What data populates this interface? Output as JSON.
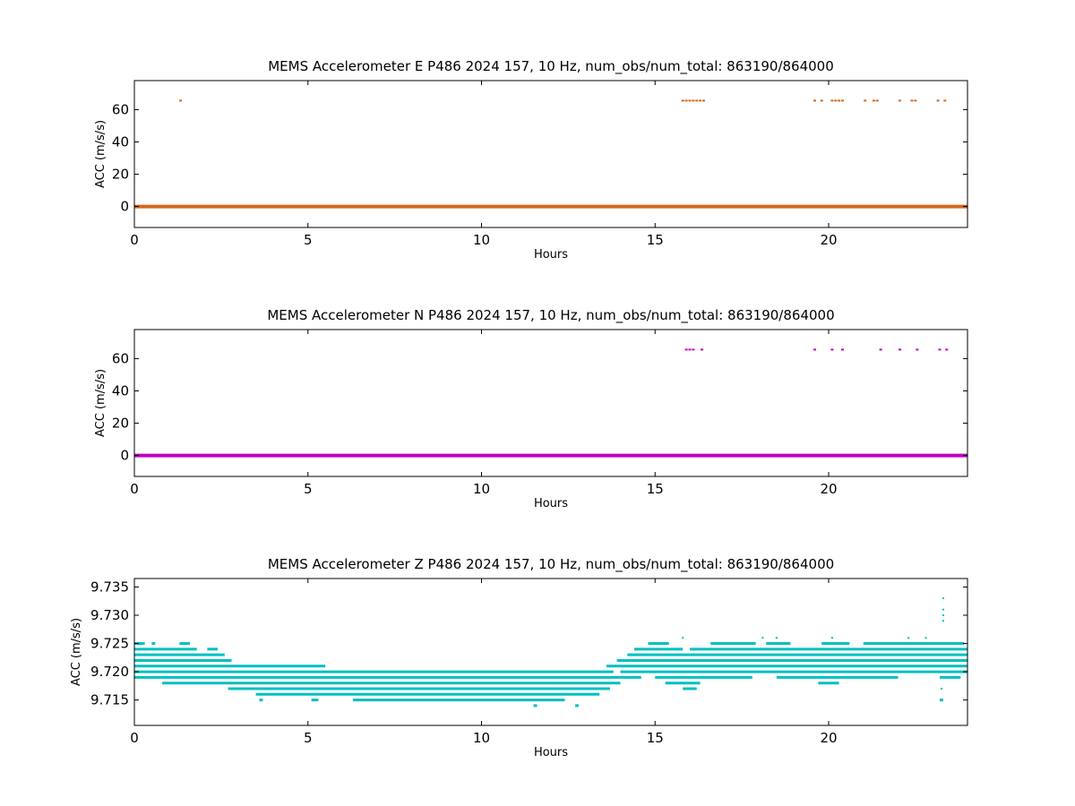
{
  "figure": {
    "background": "#ffffff"
  },
  "chart_data": [
    {
      "type": "scatter",
      "title": "MEMS Accelerometer E P486 2024 157, 10 Hz, num_obs/num_total: 863190/864000",
      "xlabel": "Hours",
      "ylabel": "ACC (m/s/s)",
      "xlim": [
        0,
        24
      ],
      "ylim": [
        -13,
        78
      ],
      "xticks": [
        0,
        5,
        10,
        15,
        20
      ],
      "xtick_labels": [
        "0",
        "5",
        "10",
        "15",
        "20"
      ],
      "yticks": [
        0,
        20,
        40,
        60
      ],
      "ytick_labels": [
        "0",
        "20",
        "40",
        "60"
      ],
      "grid": false,
      "color": "#d2691e",
      "series": [
        {
          "baseline": {
            "x_range": [
              0,
              24
            ],
            "y": 0
          },
          "outliers": {
            "y": 65.6,
            "x": [
              1.33,
              15.8,
              15.9,
              16.0,
              16.1,
              16.2,
              16.3,
              16.4,
              19.6,
              19.8,
              20.1,
              20.2,
              20.3,
              20.4,
              21.05,
              21.3,
              21.4,
              22.05,
              22.4,
              22.5,
              23.15,
              23.35
            ]
          }
        }
      ]
    },
    {
      "type": "scatter",
      "title": "MEMS Accelerometer N P486 2024 157, 10 Hz, num_obs/num_total: 863190/864000",
      "xlabel": "Hours",
      "ylabel": "ACC (m/s/s)",
      "xlim": [
        0,
        24
      ],
      "ylim": [
        -13,
        78
      ],
      "xticks": [
        0,
        5,
        10,
        15,
        20
      ],
      "xtick_labels": [
        "0",
        "5",
        "10",
        "15",
        "20"
      ],
      "yticks": [
        0,
        20,
        40,
        60
      ],
      "ytick_labels": [
        "0",
        "20",
        "40",
        "60"
      ],
      "grid": false,
      "color": "#bf00bf",
      "series": [
        {
          "baseline": {
            "x_range": [
              0,
              24
            ],
            "y": 0
          },
          "outliers": {
            "y": 65.6,
            "x": [
              15.9,
              16.0,
              16.1,
              16.35,
              19.6,
              20.1,
              20.4,
              21.5,
              22.05,
              22.55,
              23.2,
              23.4
            ]
          }
        }
      ]
    },
    {
      "type": "scatter",
      "title": "MEMS Accelerometer Z P486 2024 157, 10 Hz, num_obs/num_total: 863190/864000",
      "xlabel": "Hours",
      "ylabel": "ACC (m/s/s)",
      "xlim": [
        0,
        24
      ],
      "ylim": [
        9.7105,
        9.7365
      ],
      "xticks": [
        0,
        5,
        10,
        15,
        20
      ],
      "xtick_labels": [
        "0",
        "5",
        "10",
        "15",
        "20"
      ],
      "yticks": [
        9.715,
        9.72,
        9.725,
        9.73,
        9.735
      ],
      "ytick_labels": [
        "9.715",
        "9.720",
        "9.725",
        "9.730",
        "9.735"
      ],
      "grid": false,
      "color": "#00bfbf",
      "series": [
        {
          "levels": [
            {
              "y": 9.725,
              "segments": [
                [
                  0.0,
                  0.3
                ],
                [
                  0.5,
                  0.6
                ],
                [
                  1.3,
                  1.6
                ],
                [
                  14.8,
                  15.4
                ],
                [
                  16.6,
                  17.9
                ],
                [
                  18.2,
                  18.9
                ],
                [
                  19.8,
                  20.6
                ],
                [
                  21.0,
                  23.9
                ]
              ]
            },
            {
              "y": 9.724,
              "segments": [
                [
                  0.0,
                  1.8
                ],
                [
                  2.1,
                  2.4
                ],
                [
                  14.4,
                  15.8
                ],
                [
                  16.0,
                  24.0
                ]
              ]
            },
            {
              "y": 9.723,
              "segments": [
                [
                  0.0,
                  2.6
                ],
                [
                  14.2,
                  24.0
                ]
              ]
            },
            {
              "y": 9.722,
              "segments": [
                [
                  0.0,
                  2.8
                ],
                [
                  13.9,
                  24.0
                ]
              ]
            },
            {
              "y": 9.721,
              "segments": [
                [
                  0.0,
                  5.5
                ],
                [
                  13.6,
                  24.0
                ]
              ]
            },
            {
              "y": 9.72,
              "segments": [
                [
                  0.0,
                  13.8
                ],
                [
                  14.0,
                  24.0
                ]
              ]
            },
            {
              "y": 9.719,
              "segments": [
                [
                  0.0,
                  14.6
                ],
                [
                  15.0,
                  17.8
                ],
                [
                  18.5,
                  22.0
                ],
                [
                  23.2,
                  23.8
                ]
              ]
            },
            {
              "y": 9.718,
              "segments": [
                [
                  0.8,
                  14.0
                ],
                [
                  15.3,
                  16.3
                ],
                [
                  19.7,
                  20.3
                ]
              ]
            },
            {
              "y": 9.717,
              "segments": [
                [
                  2.7,
                  13.7
                ],
                [
                  15.8,
                  16.2
                ]
              ]
            },
            {
              "y": 9.716,
              "segments": [
                [
                  3.5,
                  13.4
                ]
              ]
            },
            {
              "y": 9.715,
              "segments": [
                [
                  3.6,
                  3.7
                ],
                [
                  5.1,
                  5.3
                ],
                [
                  6.3,
                  12.4
                ],
                [
                  23.2,
                  23.3
                ]
              ]
            },
            {
              "y": 9.714,
              "segments": [
                [
                  11.5,
                  11.6
                ],
                [
                  12.7,
                  12.8
                ]
              ]
            }
          ],
          "outliers": [
            {
              "x": 23.3,
              "y": 9.733
            },
            {
              "x": 23.3,
              "y": 9.731
            },
            {
              "x": 23.3,
              "y": 9.73
            },
            {
              "x": 23.3,
              "y": 9.729
            },
            {
              "x": 23.25,
              "y": 9.717
            },
            {
              "x": 15.8,
              "y": 9.726
            },
            {
              "x": 18.1,
              "y": 9.726
            },
            {
              "x": 18.5,
              "y": 9.726
            },
            {
              "x": 20.1,
              "y": 9.726
            },
            {
              "x": 22.3,
              "y": 9.726
            },
            {
              "x": 22.8,
              "y": 9.726
            }
          ]
        }
      ]
    }
  ]
}
